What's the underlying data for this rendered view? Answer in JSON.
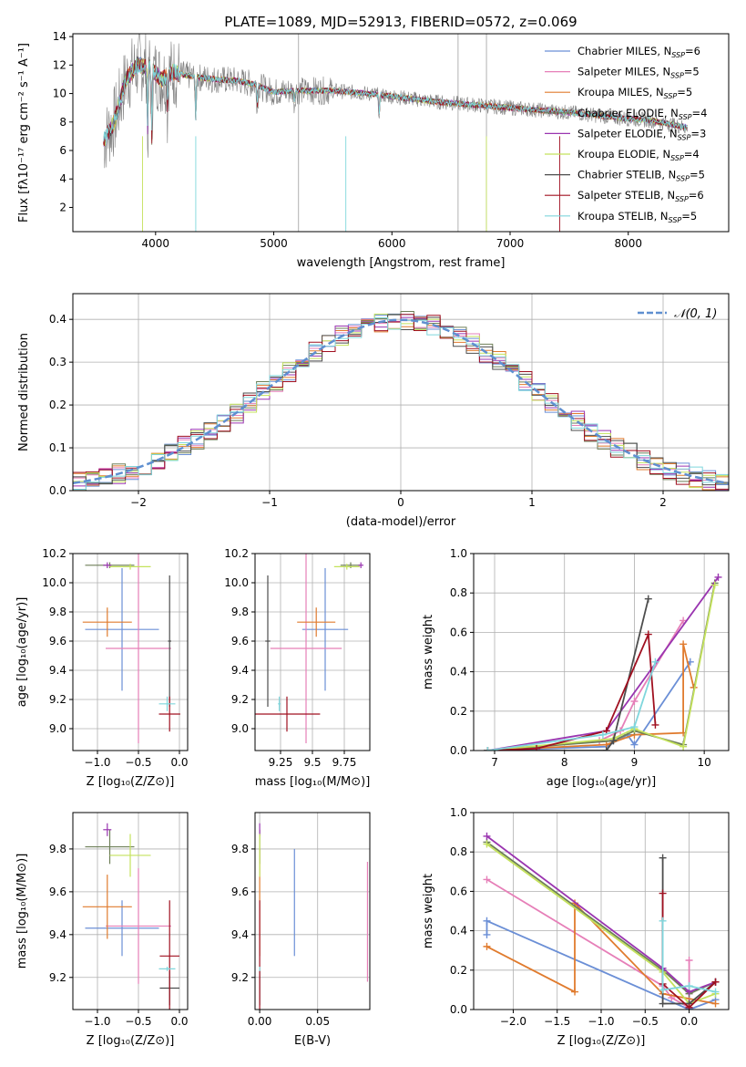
{
  "figure_title": "PLATE=1089, MJD=52913, FIBERID=0572, z=0.069",
  "colors": {
    "Chabrier MILES": "#6b8fd6",
    "Salpeter MILES": "#e67fb8",
    "Kroupa MILES": "#e07b2e",
    "Chabrier ELODIE": "#6e7f58",
    "Salpeter ELODIE": "#9a35b0",
    "Kroupa ELODIE": "#c4e25c",
    "Chabrier STELIB": "#4d4d4d",
    "Salpeter STELIB": "#a01020",
    "Kroupa STELIB": "#7fd6dc"
  },
  "chart_data": [
    {
      "type": "line",
      "id": "spectrum",
      "title": "PLATE=1089, MJD=52913, FIBERID=0572, z=0.069",
      "xlabel": "wavelength [Angstrom, rest frame]",
      "ylabel": "Flux [fλ10⁻¹⁷ erg cm⁻² s⁻¹ A⁻¹]",
      "xlim": [
        3300,
        8850
      ],
      "ylim": [
        0.3,
        14.2
      ],
      "xticks": [
        4000,
        5000,
        6000,
        7000,
        8000
      ],
      "yticks": [
        2,
        4,
        6,
        8,
        10,
        12,
        14
      ],
      "legend_position": "top-right",
      "legend": [
        "Chabrier MILES, N_SSP=6",
        "Salpeter MILES, N_SSP=5",
        "Kroupa MILES, N_SSP=5",
        "Chabrier ELODIE, N_SSP=4",
        "Salpeter ELODIE, N_SSP=3",
        "Kroupa ELODIE, N_SSP=4",
        "Chabrier STELIB, N_SSP=5",
        "Salpeter STELIB, N_SSP=6",
        "Kroupa STELIB, N_SSP=5"
      ],
      "continuum": {
        "x": [
          3550,
          3650,
          3750,
          3850,
          3950,
          4050,
          4150,
          4300,
          4500,
          4700,
          4850,
          5000,
          5200,
          5500,
          5800,
          6100,
          6400,
          6700,
          7000,
          7300,
          7600,
          7900,
          8200,
          8500
        ],
        "y": [
          6.5,
          8.0,
          11.0,
          12.0,
          11.8,
          11.0,
          11.5,
          11.2,
          11.0,
          10.9,
          10.6,
          10.1,
          10.2,
          10.2,
          10.0,
          9.7,
          9.4,
          9.2,
          9.0,
          8.8,
          8.6,
          8.3,
          8.1,
          7.6
        ]
      }
    },
    {
      "type": "bar",
      "id": "residual_histogram",
      "xlabel": "(data-model)/error",
      "ylabel": "Normed distribution",
      "xlim": [
        -2.5,
        2.5
      ],
      "ylim": [
        0,
        0.46
      ],
      "xticks": [
        -2,
        -1,
        0,
        1,
        2
      ],
      "yticks": [
        0.0,
        0.1,
        0.2,
        0.3,
        0.4
      ],
      "legend": [
        "𝒩(0, 1)"
      ],
      "legend_position": "top-right",
      "bin_width": 0.1
    },
    {
      "type": "scatter",
      "id": "age_vs_Z",
      "xlabel": "Z [log₁₀(Z/Z⊙)]",
      "ylabel": "age  [log₁₀(age/yr)]",
      "xlim": [
        -1.3,
        0.1
      ],
      "ylim": [
        8.85,
        10.2
      ],
      "xticks": [
        -1.0,
        -0.5,
        0.0
      ],
      "yticks": [
        9.0,
        9.2,
        9.4,
        9.6,
        9.8,
        10.0,
        10.2
      ],
      "points": [
        {
          "model": "Chabrier MILES",
          "x": -0.7,
          "xerr": 0.45,
          "y": 9.68,
          "yerr": 0.42
        },
        {
          "model": "Salpeter MILES",
          "x": -0.5,
          "xerr": 0.4,
          "y": 9.55,
          "yerr": 0.65
        },
        {
          "model": "Kroupa MILES",
          "x": -0.88,
          "xerr": 0.3,
          "y": 9.73,
          "yerr": 0.1
        },
        {
          "model": "Chabrier ELODIE",
          "x": -0.85,
          "xerr": 0.3,
          "y": 10.12,
          "yerr": 0.02
        },
        {
          "model": "Salpeter ELODIE",
          "x": -0.88,
          "xerr": 0.05,
          "y": 10.12,
          "yerr": 0.02
        },
        {
          "model": "Kroupa ELODIE",
          "x": -0.6,
          "xerr": 0.25,
          "y": 10.11,
          "yerr": 0.02
        },
        {
          "model": "Chabrier STELIB",
          "x": -0.12,
          "xerr": 0.02,
          "y": 9.6,
          "yerr": 0.45
        },
        {
          "model": "Salpeter STELIB",
          "x": -0.12,
          "xerr": 0.13,
          "y": 9.1,
          "yerr": 0.12
        },
        {
          "model": "Kroupa STELIB",
          "x": -0.15,
          "xerr": 0.1,
          "y": 9.17,
          "yerr": 0.05
        }
      ]
    },
    {
      "type": "scatter",
      "id": "age_vs_mass",
      "xlabel": "mass [log₁₀(M/M⊙)]",
      "ylabel": "",
      "xlim": [
        9.05,
        9.95
      ],
      "ylim": [
        8.85,
        10.2
      ],
      "xticks": [
        9.25,
        9.5,
        9.75
      ],
      "yticks": [
        9.0,
        9.2,
        9.4,
        9.6,
        9.8,
        10.0,
        10.2
      ],
      "points": [
        {
          "model": "Chabrier MILES",
          "x": 9.6,
          "xerr": 0.18,
          "y": 9.68,
          "yerr": 0.42
        },
        {
          "model": "Salpeter MILES",
          "x": 9.45,
          "xerr": 0.28,
          "y": 9.55,
          "yerr": 0.65
        },
        {
          "model": "Kroupa MILES",
          "x": 9.53,
          "xerr": 0.15,
          "y": 9.73,
          "yerr": 0.1
        },
        {
          "model": "Chabrier ELODIE",
          "x": 9.8,
          "xerr": 0.08,
          "y": 10.12,
          "yerr": 0.02
        },
        {
          "model": "Salpeter ELODIE",
          "x": 9.88,
          "xerr": 0.02,
          "y": 10.12,
          "yerr": 0.02
        },
        {
          "model": "Kroupa ELODIE",
          "x": 9.77,
          "xerr": 0.1,
          "y": 10.11,
          "yerr": 0.02
        },
        {
          "model": "Chabrier STELIB",
          "x": 9.15,
          "xerr": 0.02,
          "y": 9.6,
          "yerr": 0.45
        },
        {
          "model": "Salpeter STELIB",
          "x": 9.3,
          "xerr": 0.26,
          "y": 9.1,
          "yerr": 0.12
        },
        {
          "model": "Kroupa STELIB",
          "x": 9.24,
          "xerr": 0.01,
          "y": 9.17,
          "yerr": 0.05
        }
      ]
    },
    {
      "type": "line",
      "id": "mass_weight_vs_age",
      "xlabel": "age  [log₁₀(age/yr)]",
      "ylabel": "mass weight",
      "xlim": [
        6.7,
        10.35
      ],
      "ylim": [
        0,
        1.0
      ],
      "xticks": [
        7,
        8,
        9,
        10
      ],
      "yticks": [
        0.0,
        0.2,
        0.4,
        0.6,
        0.8,
        1.0
      ],
      "series": [
        {
          "model": "Chabrier MILES",
          "x": [
            6.9,
            8.6,
            8.9,
            9.0,
            9.8
          ],
          "y": [
            0.0,
            0.02,
            0.08,
            0.03,
            0.45
          ]
        },
        {
          "model": "Salpeter MILES",
          "x": [
            6.9,
            8.5,
            8.8,
            9.0,
            9.7
          ],
          "y": [
            0.0,
            0.05,
            0.1,
            0.25,
            0.66
          ]
        },
        {
          "model": "Kroupa MILES",
          "x": [
            6.9,
            8.6,
            9.0,
            9.7,
            9.7,
            9.85
          ],
          "y": [
            0.0,
            0.03,
            0.08,
            0.09,
            0.54,
            0.32
          ]
        },
        {
          "model": "Chabrier ELODIE",
          "x": [
            6.9,
            8.7,
            9.0,
            9.7,
            10.15
          ],
          "y": [
            0.0,
            0.05,
            0.1,
            0.03,
            0.85
          ]
        },
        {
          "model": "Salpeter ELODIE",
          "x": [
            6.9,
            8.6,
            10.2
          ],
          "y": [
            0.0,
            0.1,
            0.88
          ]
        },
        {
          "model": "Kroupa ELODIE",
          "x": [
            6.9,
            8.7,
            9.0,
            9.7,
            10.15
          ],
          "y": [
            0.0,
            0.06,
            0.11,
            0.02,
            0.84
          ]
        },
        {
          "model": "Chabrier STELIB",
          "x": [
            6.9,
            8.6,
            8.7,
            9.2
          ],
          "y": [
            0.0,
            0.0,
            0.05,
            0.77
          ]
        },
        {
          "model": "Salpeter STELIB",
          "x": [
            6.9,
            7.6,
            8.6,
            9.2,
            9.3
          ],
          "y": [
            0.0,
            0.01,
            0.1,
            0.59,
            0.13
          ]
        },
        {
          "model": "Kroupa STELIB",
          "x": [
            6.9,
            8.55,
            9.0,
            9.3
          ],
          "y": [
            0.0,
            0.08,
            0.12,
            0.45
          ]
        }
      ]
    },
    {
      "type": "scatter",
      "id": "mass_vs_Z",
      "xlabel": "Z [log₁₀(Z/Z⊙)]",
      "ylabel": "mass [log₁₀(M/M⊙)]",
      "xlim": [
        -1.3,
        0.1
      ],
      "ylim": [
        9.05,
        9.97
      ],
      "xticks": [
        -1.0,
        -0.5,
        0.0
      ],
      "yticks": [
        9.2,
        9.4,
        9.6,
        9.8
      ],
      "points": [
        {
          "model": "Chabrier MILES",
          "x": -0.7,
          "xerr": 0.45,
          "y": 9.43,
          "yerr": 0.13
        },
        {
          "model": "Salpeter MILES",
          "x": -0.5,
          "xerr": 0.4,
          "y": 9.44,
          "yerr": 0.27
        },
        {
          "model": "Kroupa MILES",
          "x": -0.88,
          "xerr": 0.3,
          "y": 9.53,
          "yerr": 0.15
        },
        {
          "model": "Chabrier ELODIE",
          "x": -0.85,
          "xerr": 0.3,
          "y": 9.81,
          "yerr": 0.08
        },
        {
          "model": "Salpeter ELODIE",
          "x": -0.88,
          "xerr": 0.05,
          "y": 9.89,
          "yerr": 0.03
        },
        {
          "model": "Kroupa ELODIE",
          "x": -0.6,
          "xerr": 0.25,
          "y": 9.77,
          "yerr": 0.1
        },
        {
          "model": "Chabrier STELIB",
          "x": -0.12,
          "xerr": 0.12,
          "y": 9.15,
          "yerr": 0.08
        },
        {
          "model": "Salpeter STELIB",
          "x": -0.12,
          "xerr": 0.12,
          "y": 9.3,
          "yerr": 0.26
        },
        {
          "model": "Kroupa STELIB",
          "x": -0.15,
          "xerr": 0.1,
          "y": 9.24,
          "yerr": 0.01
        }
      ]
    },
    {
      "type": "scatter",
      "id": "mass_vs_EBV",
      "xlabel": "E(B-V)",
      "ylabel": "",
      "xlim": [
        -0.004,
        0.095
      ],
      "ylim": [
        9.05,
        9.97
      ],
      "xticks": [
        0.0,
        0.05
      ],
      "yticks": [
        9.2,
        9.4,
        9.6,
        9.8
      ],
      "points": [
        {
          "model": "Chabrier MILES",
          "x": 0.03,
          "y": 9.55,
          "yerr": 0.25
        },
        {
          "model": "Salpeter MILES",
          "x": 0.093,
          "y": 9.46,
          "yerr": 0.28
        },
        {
          "model": "Kroupa MILES",
          "x": 0.0,
          "y": 9.55,
          "yerr": 0.25
        },
        {
          "model": "Chabrier ELODIE",
          "x": 0.0,
          "y": 9.81,
          "yerr": 0.08
        },
        {
          "model": "Salpeter ELODIE",
          "x": 0.0,
          "y": 9.89,
          "yerr": 0.03
        },
        {
          "model": "Kroupa ELODIE",
          "x": 0.0,
          "y": 9.77,
          "yerr": 0.1
        },
        {
          "model": "Chabrier STELIB",
          "x": 0.0,
          "y": 9.15,
          "yerr": 0.08
        },
        {
          "model": "Salpeter STELIB",
          "x": 0.0,
          "y": 9.3,
          "yerr": 0.26
        },
        {
          "model": "Kroupa STELIB",
          "x": 0.0,
          "y": 9.24,
          "yerr": 0.01
        }
      ]
    },
    {
      "type": "line",
      "id": "mass_weight_vs_Z",
      "xlabel": "Z [log₁₀(Z/Z⊙)]",
      "ylabel": "mass weight",
      "xlim": [
        -2.45,
        0.45
      ],
      "ylim": [
        0,
        1.0
      ],
      "xticks": [
        -2.0,
        -1.5,
        -1.0,
        -0.5,
        0.0
      ],
      "yticks": [
        0.0,
        0.2,
        0.4,
        0.6,
        0.8,
        1.0
      ],
      "series": [
        {
          "model": "Chabrier MILES",
          "x": [
            -2.3,
            -2.3,
            0.0,
            0.3
          ],
          "y": [
            0.38,
            0.45,
            0.0,
            0.05
          ]
        },
        {
          "model": "Salpeter MILES",
          "x": [
            -2.3,
            -0.3,
            -0.2,
            0.0,
            0.0
          ],
          "y": [
            0.66,
            0.12,
            0.06,
            0.01,
            0.25
          ]
        },
        {
          "model": "Kroupa MILES",
          "x": [
            -2.3,
            -1.3,
            -1.3,
            -0.3,
            0.3
          ],
          "y": [
            0.32,
            0.09,
            0.54,
            0.08,
            0.03
          ]
        },
        {
          "model": "Chabrier ELODIE",
          "x": [
            -2.3,
            -0.3,
            0.0,
            0.3
          ],
          "y": [
            0.85,
            0.2,
            0.08,
            0.14
          ]
        },
        {
          "model": "Salpeter ELODIE",
          "x": [
            -2.3,
            -0.3,
            0.0,
            0.3
          ],
          "y": [
            0.88,
            0.21,
            0.09,
            0.14
          ]
        },
        {
          "model": "Kroupa ELODIE",
          "x": [
            -2.3,
            -0.3,
            0.0,
            0.3
          ],
          "y": [
            0.84,
            0.19,
            0.03,
            0.08
          ]
        },
        {
          "model": "Chabrier STELIB",
          "x": [
            -0.3,
            -0.3,
            0.0,
            0.3
          ],
          "y": [
            0.77,
            0.03,
            0.03,
            0.14
          ]
        },
        {
          "model": "Salpeter STELIB",
          "x": [
            -0.3,
            -0.3,
            0.0,
            0.3
          ],
          "y": [
            0.59,
            0.13,
            0.01,
            0.14
          ]
        },
        {
          "model": "Kroupa STELIB",
          "x": [
            -0.3,
            -0.3,
            0.0,
            0.3
          ],
          "y": [
            0.45,
            0.1,
            0.12,
            0.09
          ]
        }
      ]
    }
  ]
}
